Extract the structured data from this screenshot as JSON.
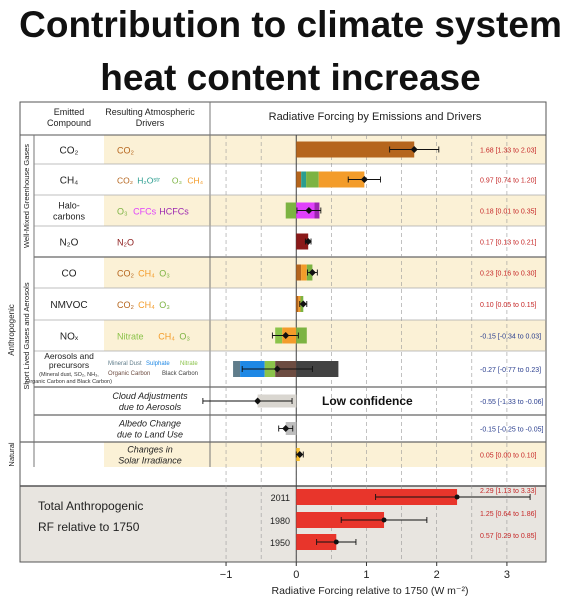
{
  "title_lines": [
    "Contribution to climate system",
    "heat content increase"
  ],
  "headers": {
    "emitted": [
      "Emitted",
      "Compound"
    ],
    "drivers": [
      "Resulting Atmospheric",
      "Drivers"
    ],
    "chart": "Radiative Forcing by Emissions and Drivers"
  },
  "groups": {
    "anthropogenic": "Anthropogenic",
    "wmghg": "Well-Mixed Greenhouse Gases",
    "slgas": "Short Lived Gases and Aerosols",
    "natural": "Natural"
  },
  "annotation": "Low confidence",
  "colors": {
    "co2": "#b5651d",
    "ch4": "#f39c2a",
    "h2o": "#2a9d8f",
    "o3": "#7cb342",
    "cfc": "#e040fb",
    "hcfc": "#9c27b0",
    "n2o": "#8b1a1a",
    "nitrate": "#8bc34a",
    "dust": "#607d8b",
    "sulphate": "#1e88e5",
    "oc": "#6d4c41",
    "bc": "#424242",
    "total": "#e8352b",
    "cloud": "#d9d6d0",
    "landuse": "#bdbdbd",
    "solar": "#fbc02d"
  },
  "chart_data": {
    "type": "bar",
    "xlabel": "Radiative Forcing relative to 1750 (W m⁻²)",
    "xlim": [
      -1.2,
      3.4
    ],
    "xticks": [
      -1,
      0,
      1,
      2,
      3
    ],
    "rows": [
      {
        "compound": "CO₂",
        "drivers": [
          {
            "text": "CO₂",
            "color": "#b5651d"
          }
        ],
        "segments": [
          {
            "from": 0,
            "to": 1.68,
            "color": "#b5651d"
          }
        ],
        "value": 1.68,
        "ci": [
          1.33,
          2.03
        ],
        "label": "1.68 [1.33 to 2.03]",
        "group": "wmghg"
      },
      {
        "compound": "CH₄",
        "drivers": [
          {
            "text": "CO₂",
            "color": "#b5651d"
          },
          {
            "text": "H₂Oˢᵗʳ",
            "color": "#2a9d8f"
          },
          {
            "text": "O₃",
            "color": "#7cb342"
          },
          {
            "text": "CH₄",
            "color": "#f39c2a"
          }
        ],
        "segments": [
          {
            "from": 0,
            "to": 0.07,
            "color": "#b5651d"
          },
          {
            "from": 0.07,
            "to": 0.14,
            "color": "#2a9d8f"
          },
          {
            "from": 0.14,
            "to": 0.32,
            "color": "#7cb342"
          },
          {
            "from": 0.32,
            "to": 0.97,
            "color": "#f39c2a"
          }
        ],
        "value": 0.97,
        "ci": [
          0.74,
          1.2
        ],
        "label": "0.97 [0.74 to 1.20]",
        "group": "wmghg"
      },
      {
        "compound": "Halo-carbons",
        "drivers": [
          {
            "text": "O₃",
            "color": "#7cb342"
          },
          {
            "text": "CFCs",
            "color": "#e040fb"
          },
          {
            "text": "HCFCs",
            "color": "#9c27b0"
          }
        ],
        "segments": [
          {
            "from": -0.15,
            "to": 0,
            "color": "#7cb342"
          },
          {
            "from": 0,
            "to": 0.26,
            "color": "#e040fb"
          },
          {
            "from": 0.26,
            "to": 0.33,
            "color": "#9c27b0"
          }
        ],
        "value": 0.18,
        "ci": [
          0.01,
          0.35
        ],
        "label": "0.18 [0.01 to 0.35]",
        "group": "wmghg"
      },
      {
        "compound": "N₂O",
        "drivers": [
          {
            "text": "N₂O",
            "color": "#8b1a1a"
          }
        ],
        "segments": [
          {
            "from": 0,
            "to": 0.17,
            "color": "#8b1a1a"
          }
        ],
        "value": 0.17,
        "ci": [
          0.13,
          0.21
        ],
        "label": "0.17 [0.13 to 0.21]",
        "group": "wmghg"
      },
      {
        "compound": "CO",
        "drivers": [
          {
            "text": "CO₂",
            "color": "#b5651d"
          },
          {
            "text": "CH₄",
            "color": "#f39c2a"
          },
          {
            "text": "O₃",
            "color": "#7cb342"
          }
        ],
        "segments": [
          {
            "from": 0,
            "to": 0.07,
            "color": "#b5651d"
          },
          {
            "from": 0.07,
            "to": 0.15,
            "color": "#f39c2a"
          },
          {
            "from": 0.15,
            "to": 0.23,
            "color": "#7cb342"
          }
        ],
        "value": 0.23,
        "ci": [
          0.16,
          0.3
        ],
        "label": "0.23 [0.16 to 0.30]",
        "group": "slgas"
      },
      {
        "compound": "NMVOC",
        "drivers": [
          {
            "text": "CO₂",
            "color": "#b5651d"
          },
          {
            "text": "CH₄",
            "color": "#f39c2a"
          },
          {
            "text": "O₃",
            "color": "#7cb342"
          }
        ],
        "segments": [
          {
            "from": 0,
            "to": 0.03,
            "color": "#b5651d"
          },
          {
            "from": 0.03,
            "to": 0.06,
            "color": "#f39c2a"
          },
          {
            "from": 0.06,
            "to": 0.1,
            "color": "#7cb342"
          }
        ],
        "value": 0.1,
        "ci": [
          0.05,
          0.15
        ],
        "label": "0.10 [0.05 to 0.15]",
        "group": "slgas"
      },
      {
        "compound": "NOₓ",
        "drivers": [
          {
            "text": "Nitrate",
            "color": "#8bc34a"
          },
          {
            "text": "CH₄",
            "color": "#f39c2a"
          },
          {
            "text": "O₃",
            "color": "#7cb342"
          }
        ],
        "segments": [
          {
            "from": -0.3,
            "to": -0.2,
            "color": "#8bc34a"
          },
          {
            "from": -0.2,
            "to": 0,
            "color": "#f39c2a"
          },
          {
            "from": 0,
            "to": 0.15,
            "color": "#7cb342"
          }
        ],
        "value": -0.15,
        "ci": [
          -0.34,
          0.03
        ],
        "label": "-0.15 [-0.34 to 0.03]",
        "group": "slgas"
      },
      {
        "compound": "Aerosols and precursors",
        "compound_note": "(Mineral dust, SO₂, NH₃, Organic Carbon and Black Carbon)",
        "drivers": [
          {
            "text": "Mineral Dust",
            "color": "#607d8b"
          },
          {
            "text": "Sulphate",
            "color": "#1e88e5"
          },
          {
            "text": "Nitrate",
            "color": "#8bc34a"
          },
          {
            "text": "Organic Carbon",
            "color": "#6d4c41"
          },
          {
            "text": "Black Carbon",
            "color": "#424242"
          }
        ],
        "segments": [
          {
            "from": -0.9,
            "to": -0.8,
            "color": "#607d8b"
          },
          {
            "from": -0.8,
            "to": -0.45,
            "color": "#1e88e5"
          },
          {
            "from": -0.45,
            "to": -0.3,
            "color": "#8bc34a"
          },
          {
            "from": -0.3,
            "to": 0,
            "color": "#6d4c41"
          },
          {
            "from": 0,
            "to": 0.6,
            "color": "#424242"
          }
        ],
        "value": -0.27,
        "ci": [
          -0.77,
          0.23
        ],
        "label": "-0.27 [-0.77 to 0.23]",
        "group": "slgas"
      },
      {
        "compound": "",
        "drivers": [
          {
            "text": "Cloud Adjustments",
            "color": "#222222"
          },
          {
            "text": "due to Aerosols",
            "color": "#222222"
          }
        ],
        "segments": [
          {
            "from": -0.55,
            "to": 0,
            "color": "#d9d6d0"
          }
        ],
        "value": -0.55,
        "ci": [
          -1.33,
          -0.06
        ],
        "label": "-0.55 [-1.33 to -0.06]",
        "group": "slgas"
      },
      {
        "compound": "",
        "drivers": [
          {
            "text": "Albedo Change",
            "color": "#222222"
          },
          {
            "text": "due to Land Use",
            "color": "#222222"
          }
        ],
        "segments": [
          {
            "from": -0.15,
            "to": 0,
            "color": "#bdbdbd"
          }
        ],
        "value": -0.15,
        "ci": [
          -0.25,
          -0.05
        ],
        "label": "-0.15 [-0.25 to -0.05]",
        "group": "landuse"
      },
      {
        "compound": "",
        "drivers": [
          {
            "text": "Changes in",
            "color": "#222222"
          },
          {
            "text": "Solar Irradiance",
            "color": "#222222"
          }
        ],
        "segments": [
          {
            "from": 0,
            "to": 0.05,
            "color": "#fbc02d"
          }
        ],
        "value": 0.05,
        "ci": [
          0.0,
          0.1
        ],
        "label": "0.05 [0.00 to 0.10]",
        "group": "natural"
      }
    ],
    "totals": {
      "label_lines": [
        "Total Anthropogenic",
        "RF relative to 1750"
      ],
      "bars": [
        {
          "year": "2011",
          "value": 2.29,
          "ci": [
            1.13,
            3.33
          ],
          "label": "2.29 [1.13 to 3.33]"
        },
        {
          "year": "1980",
          "value": 1.25,
          "ci": [
            0.64,
            1.86
          ],
          "label": "1.25 [0.64 to 1.86]"
        },
        {
          "year": "1950",
          "value": 0.57,
          "ci": [
            0.29,
            0.85
          ],
          "label": "0.57 [0.29 to 0.85]"
        }
      ]
    }
  }
}
